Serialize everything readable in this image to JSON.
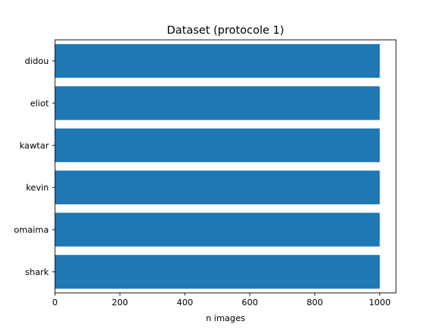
{
  "chart_data": {
    "type": "bar",
    "orientation": "horizontal",
    "title": "Dataset (protocole 1)",
    "xlabel": "n images",
    "ylabel": "",
    "categories": [
      "didou",
      "eliot",
      "kawtar",
      "kevin",
      "omaima",
      "shark"
    ],
    "values": [
      1000,
      1000,
      1000,
      1000,
      1000,
      1000
    ],
    "xlim": [
      0,
      1050
    ],
    "xticks": [
      0,
      200,
      400,
      600,
      800,
      1000
    ],
    "bar_color": "#1f77b4",
    "grid": false,
    "legend": "none"
  }
}
